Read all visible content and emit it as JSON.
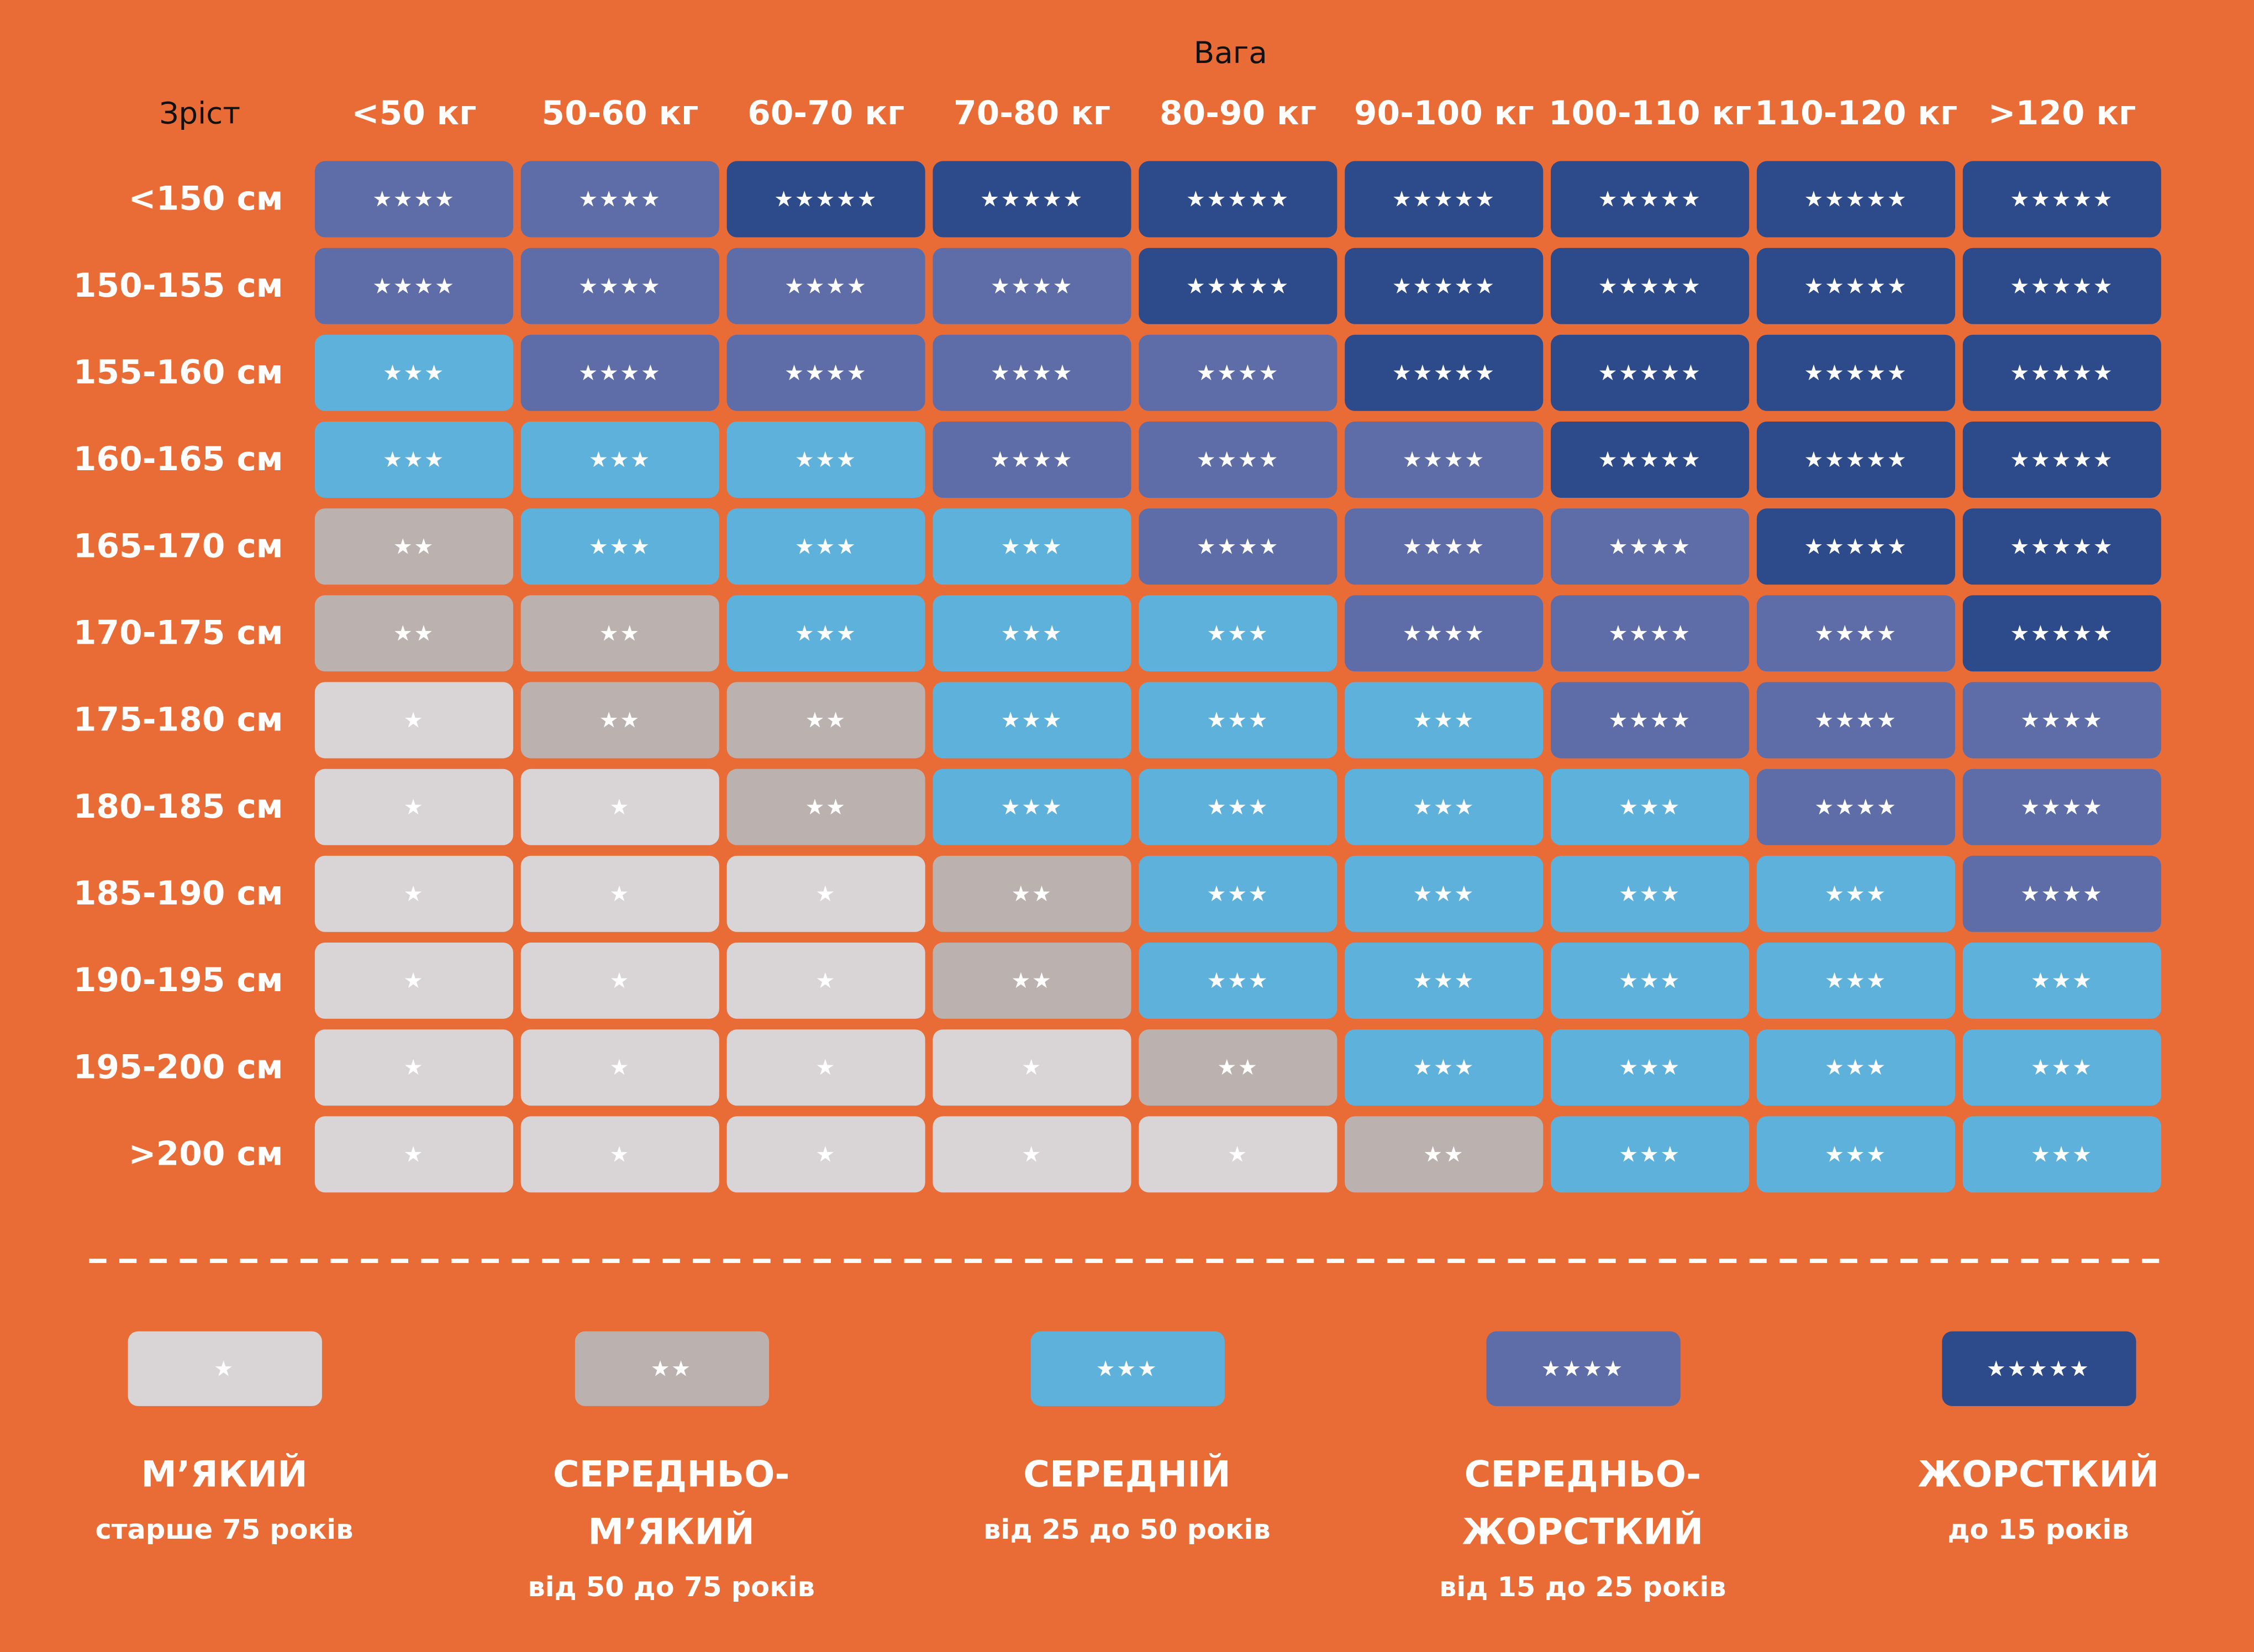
{
  "header": {
    "weight_title": "Вага",
    "height_title": "Зріст",
    "columns": [
      "<50 кг",
      "50-60 кг",
      "60-70 кг",
      "70-80 кг",
      "80-90 кг",
      "90-100 кг",
      "100-110 кг",
      "110-120 кг",
      ">120 кг"
    ]
  },
  "table": {
    "rows": [
      {
        "label": "<150 см",
        "cells": [
          "★★★★",
          "★★★★",
          "★★★★★",
          "★★★★★",
          "★★★★★",
          "★★★★★",
          "★★★★★",
          "★★★★★",
          "★★★★★"
        ]
      },
      {
        "label": "150-155 см",
        "cells": [
          "★★★★",
          "★★★★",
          "★★★★",
          "★★★★",
          "★★★★★",
          "★★★★★",
          "★★★★★",
          "★★★★★",
          "★★★★★"
        ]
      },
      {
        "label": "155-160 см",
        "cells": [
          "★★★",
          "★★★★",
          "★★★★",
          "★★★★",
          "★★★★",
          "★★★★★",
          "★★★★★",
          "★★★★★",
          "★★★★★"
        ]
      },
      {
        "label": "160-165 см",
        "cells": [
          "★★★",
          "★★★",
          "★★★",
          "★★★★",
          "★★★★",
          "★★★★",
          "★★★★★",
          "★★★★★",
          "★★★★★"
        ]
      },
      {
        "label": "165-170 см",
        "cells": [
          "★★",
          "★★★",
          "★★★",
          "★★★",
          "★★★★",
          "★★★★",
          "★★★★",
          "★★★★★",
          "★★★★★"
        ]
      },
      {
        "label": "170-175 см",
        "cells": [
          "★★",
          "★★",
          "★★★",
          "★★★",
          "★★★",
          "★★★★",
          "★★★★",
          "★★★★",
          "★★★★★"
        ]
      },
      {
        "label": "175-180 см",
        "cells": [
          "★",
          "★★",
          "★★",
          "★★★",
          "★★★",
          "★★★",
          "★★★★",
          "★★★★",
          "★★★★"
        ]
      },
      {
        "label": "180-185 см",
        "cells": [
          "★",
          "★",
          "★★",
          "★★★",
          "★★★",
          "★★★",
          "★★★",
          "★★★★",
          "★★★★"
        ]
      },
      {
        "label": "185-190 см",
        "cells": [
          "★",
          "★",
          "★",
          "★★",
          "★★★",
          "★★★",
          "★★★",
          "★★★",
          "★★★★"
        ]
      },
      {
        "label": "190-195 см",
        "cells": [
          "★",
          "★",
          "★",
          "★★",
          "★★★",
          "★★★",
          "★★★",
          "★★★",
          "★★★"
        ]
      },
      {
        "label": "195-200 см",
        "cells": [
          "★",
          "★",
          "★",
          "★",
          "★★",
          "★★★",
          "★★★",
          "★★★",
          "★★★"
        ]
      },
      {
        "label": ">200 см",
        "cells": [
          "★",
          "★",
          "★",
          "★",
          "★",
          "★★",
          "★★★",
          "★★★",
          "★★★"
        ]
      }
    ]
  },
  "legend": [
    {
      "stars": "★",
      "color": "#d9d5d6",
      "title": [
        "М’ЯКИЙ"
      ],
      "subtitle": "старше 75 років"
    },
    {
      "stars": "★★",
      "color": "#bbb1ae",
      "title": [
        "СЕРЕДНЬО-",
        "М’ЯКИЙ"
      ],
      "subtitle": "від 50 до 75 років"
    },
    {
      "stars": "★★★",
      "color": "#5eb1db",
      "title": [
        "СЕРЕДНІЙ"
      ],
      "subtitle": "від 25 до 50 років"
    },
    {
      "stars": "★★★★",
      "color": "#5e6ca8",
      "title": [
        "СЕРЕДНЬО-",
        "ЖОРСТКИЙ"
      ],
      "subtitle": "від 15 до 25 років"
    },
    {
      "stars": "★★★★★",
      "color": "#2d4a8b",
      "title": [
        "ЖОРСТКИЙ"
      ],
      "subtitle": "до 15 років"
    }
  ]
}
